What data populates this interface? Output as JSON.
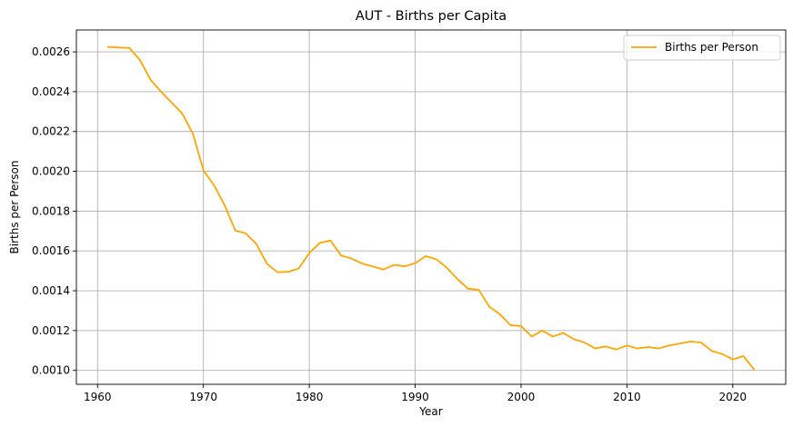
{
  "chart_data": {
    "type": "line",
    "title": "AUT - Births per Capita",
    "xlabel": "Year",
    "ylabel": "Births per Person",
    "xlim": [
      1958,
      2025
    ],
    "ylim": [
      0.00093,
      0.00271
    ],
    "xticks": [
      1960,
      1970,
      1980,
      1990,
      2000,
      2010,
      2020
    ],
    "xtick_labels": [
      "1960",
      "1970",
      "1980",
      "1990",
      "2000",
      "2010",
      "2020"
    ],
    "yticks": [
      0.001,
      0.0012,
      0.0014,
      0.0016,
      0.0018,
      0.002,
      0.0022,
      0.0024,
      0.0026
    ],
    "ytick_labels": [
      "0.0010",
      "0.0012",
      "0.0014",
      "0.0016",
      "0.0018",
      "0.0020",
      "0.0022",
      "0.0024",
      "0.0026"
    ],
    "grid": true,
    "legend_position": "top-right",
    "series": [
      {
        "name": "Births per Person",
        "color": "#FFA500",
        "x": [
          1961,
          1962,
          1963,
          1964,
          1965,
          1966,
          1967,
          1968,
          1969,
          1970,
          1971,
          1972,
          1973,
          1974,
          1975,
          1976,
          1977,
          1978,
          1979,
          1980,
          1981,
          1982,
          1983,
          1984,
          1985,
          1986,
          1987,
          1988,
          1989,
          1990,
          1991,
          1992,
          1993,
          1994,
          1995,
          1996,
          1997,
          1998,
          1999,
          2000,
          2001,
          2002,
          2003,
          2004,
          2005,
          2006,
          2007,
          2008,
          2009,
          2010,
          2011,
          2012,
          2013,
          2014,
          2015,
          2016,
          2017,
          2018,
          2019,
          2020,
          2021,
          2022
        ],
        "y": [
          0.002625,
          0.002622,
          0.00262,
          0.00256,
          0.00246,
          0.0024,
          0.002345,
          0.00229,
          0.00219,
          0.002005,
          0.00193,
          0.00183,
          0.001703,
          0.001688,
          0.001635,
          0.001535,
          0.001493,
          0.001495,
          0.001512,
          0.00159,
          0.00164,
          0.001652,
          0.001577,
          0.001562,
          0.001536,
          0.001522,
          0.001507,
          0.00153,
          0.001523,
          0.001538,
          0.001574,
          0.001558,
          0.001515,
          0.001458,
          0.00141,
          0.001405,
          0.00132,
          0.001282,
          0.001227,
          0.001223,
          0.00117,
          0.0012,
          0.00117,
          0.001188,
          0.001156,
          0.00114,
          0.00111,
          0.00112,
          0.001105,
          0.001125,
          0.00111,
          0.001117,
          0.00111,
          0.001125,
          0.001135,
          0.001145,
          0.00114,
          0.001098,
          0.001082,
          0.001055,
          0.001072,
          0.001005
        ]
      }
    ]
  }
}
